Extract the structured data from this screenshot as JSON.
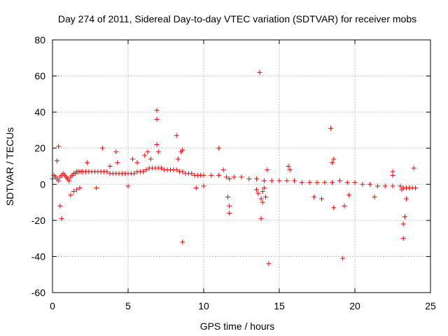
{
  "chart_data": {
    "type": "scatter",
    "title": "Day 274 of 2011, Sidereal Day-to-day VTEC variation (SDTVAR) for receiver mobs",
    "xlabel": "GPS time / hours",
    "ylabel": "SDTVAR / TECUs",
    "xlim": [
      0,
      25
    ],
    "ylim": [
      -60,
      80
    ],
    "xticks": [
      0,
      5,
      10,
      15,
      20,
      25
    ],
    "yticks": [
      -60,
      -40,
      -20,
      0,
      20,
      40,
      60,
      80
    ],
    "grid": true,
    "marker": "+",
    "color": "#ff0000",
    "series": [
      {
        "name": "SDTVAR",
        "x": [
          0.0,
          0.1,
          0.2,
          0.3,
          0.4,
          0.5,
          0.6,
          0.7,
          0.8,
          0.9,
          1.0,
          1.1,
          1.2,
          1.3,
          1.4,
          1.5,
          1.6,
          1.7,
          1.8,
          1.9,
          2.0,
          2.2,
          2.4,
          2.6,
          2.8,
          3.0,
          3.2,
          3.4,
          3.6,
          3.8,
          4.0,
          4.2,
          4.4,
          4.6,
          4.8,
          5.0,
          5.2,
          5.4,
          5.6,
          5.8,
          6.0,
          6.2,
          6.4,
          6.6,
          6.8,
          7.0,
          7.2,
          7.4,
          7.6,
          7.8,
          8.0,
          8.2,
          8.4,
          8.6,
          8.8,
          9.0,
          9.2,
          9.4,
          9.6,
          9.8,
          10.0,
          10.5,
          11.0,
          11.5,
          12.0,
          12.5,
          13.0,
          13.5,
          14.0,
          14.5,
          15.0,
          15.5,
          16.0,
          16.5,
          17.0,
          17.5,
          18.0,
          18.5,
          19.0,
          19.5,
          20.0,
          20.5,
          21.0,
          21.5,
          22.0,
          22.5,
          23.0,
          23.2,
          23.4,
          23.6,
          23.8,
          24.0,
          0.3,
          0.4,
          0.5,
          0.6,
          1.2,
          1.4,
          1.6,
          1.8,
          2.3,
          2.9,
          3.3,
          3.8,
          4.2,
          4.3,
          5.0,
          5.3,
          5.6,
          6.1,
          6.3,
          6.5,
          6.9,
          6.9,
          6.9,
          7.0,
          8.2,
          8.3,
          8.5,
          8.6,
          8.6,
          9.5,
          10.0,
          11.0,
          11.3,
          11.6,
          11.7,
          11.7,
          11.7,
          13.5,
          13.6,
          13.7,
          13.8,
          13.8,
          13.9,
          13.9,
          14.0,
          14.1,
          14.2,
          14.3,
          15.6,
          15.7,
          17.3,
          17.8,
          18.4,
          18.5,
          18.6,
          18.6,
          19.2,
          19.3,
          19.6,
          21.3,
          22.5,
          22.5,
          23.1,
          23.2,
          23.2,
          23.3,
          23.4,
          23.6,
          23.9
        ],
        "y": [
          3,
          5,
          4,
          3,
          2,
          4,
          5,
          6,
          5,
          4,
          3,
          2,
          4,
          5,
          6,
          6,
          7,
          7,
          7,
          7,
          7,
          7,
          7,
          7,
          7,
          7,
          7,
          7,
          7,
          6,
          6,
          6,
          6,
          6,
          6,
          6,
          6,
          6,
          7,
          7,
          7,
          8,
          9,
          9,
          9,
          9,
          9,
          8,
          8,
          8,
          8,
          8,
          7,
          7,
          6,
          6,
          6,
          5,
          5,
          5,
          5,
          5,
          5,
          4,
          4,
          4,
          3,
          3,
          2,
          2,
          2,
          2,
          2,
          1,
          1,
          1,
          1,
          1,
          2,
          1,
          1,
          0,
          0,
          -1,
          -1,
          -1,
          -1,
          -2,
          -2,
          -2,
          -2,
          -2,
          13,
          21,
          -12,
          -19,
          -6,
          -4,
          -3,
          -2,
          12,
          -2,
          20,
          10,
          18,
          12,
          -1,
          14,
          12,
          16,
          18,
          14,
          41,
          36,
          22,
          18,
          27,
          14,
          18,
          19,
          -32,
          -2,
          -1,
          20,
          8,
          -7,
          -12,
          -16,
          3,
          -3,
          -5,
          62,
          -19,
          -8,
          -10,
          -4,
          -2,
          -7,
          8,
          -44,
          10,
          8,
          -7,
          -8,
          31,
          12,
          14,
          -13,
          -41,
          -12,
          -6,
          -7,
          5,
          7,
          -3,
          -22,
          -30,
          -18,
          -8,
          -2,
          9
        ]
      }
    ]
  }
}
